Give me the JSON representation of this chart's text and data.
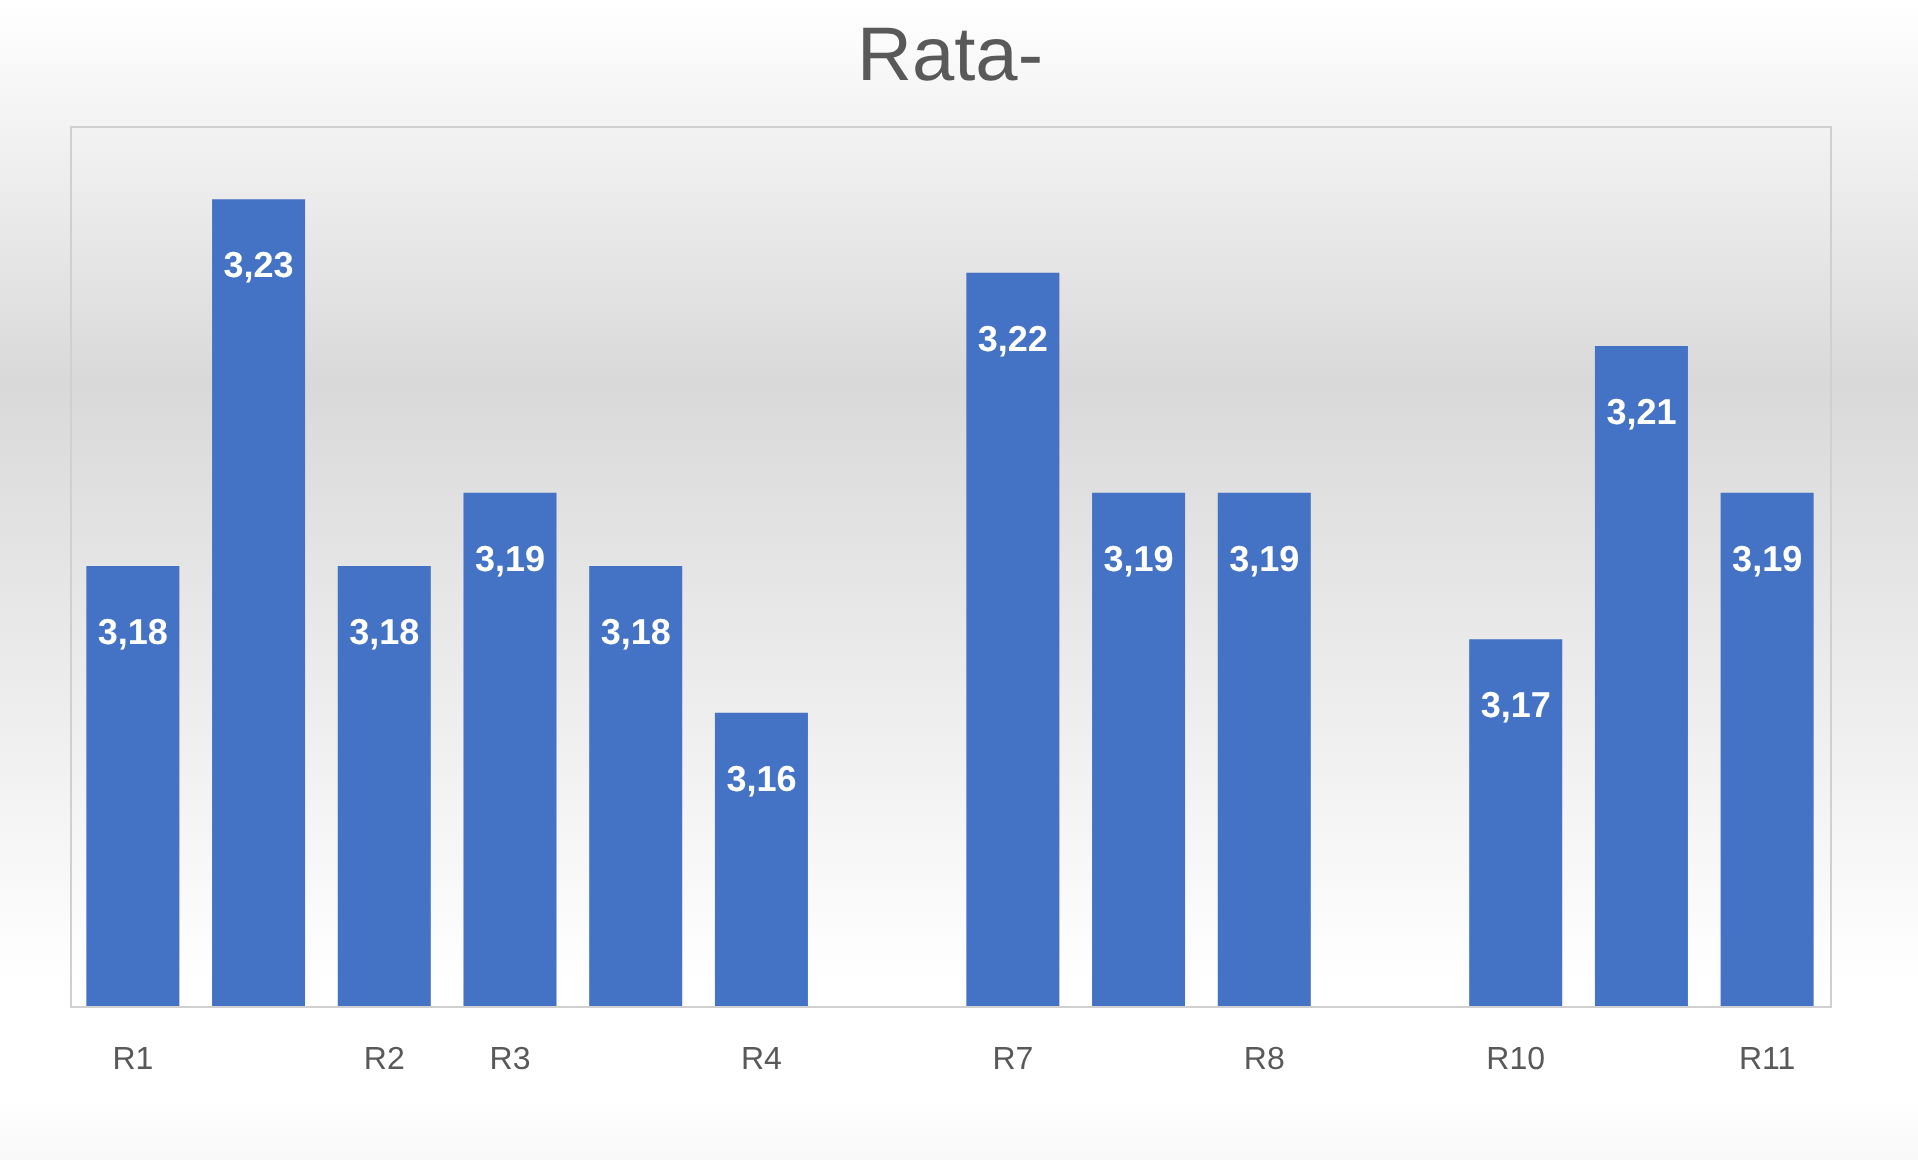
{
  "chart_data": {
    "type": "bar",
    "title": "Rata-",
    "categories": [
      "R1",
      null,
      "R2",
      "R3",
      null,
      "R4",
      null,
      "R7",
      null,
      "R8",
      null,
      "R10",
      null,
      "R11"
    ],
    "values": [
      3.18,
      3.23,
      3.18,
      3.19,
      3.18,
      3.16,
      null,
      3.22,
      3.19,
      3.19,
      null,
      3.17,
      3.21,
      3.19
    ],
    "value_labels": [
      "3,18",
      "3,23",
      "3,18",
      "3,19",
      "3,18",
      "3,16",
      null,
      "3,22",
      "3,19",
      "3,19",
      null,
      "3,17",
      "3,21",
      "3,19"
    ],
    "color": "#4472c4",
    "ylim": [
      3.12,
      3.24
    ],
    "tick_labels": "x",
    "grid": false
  }
}
